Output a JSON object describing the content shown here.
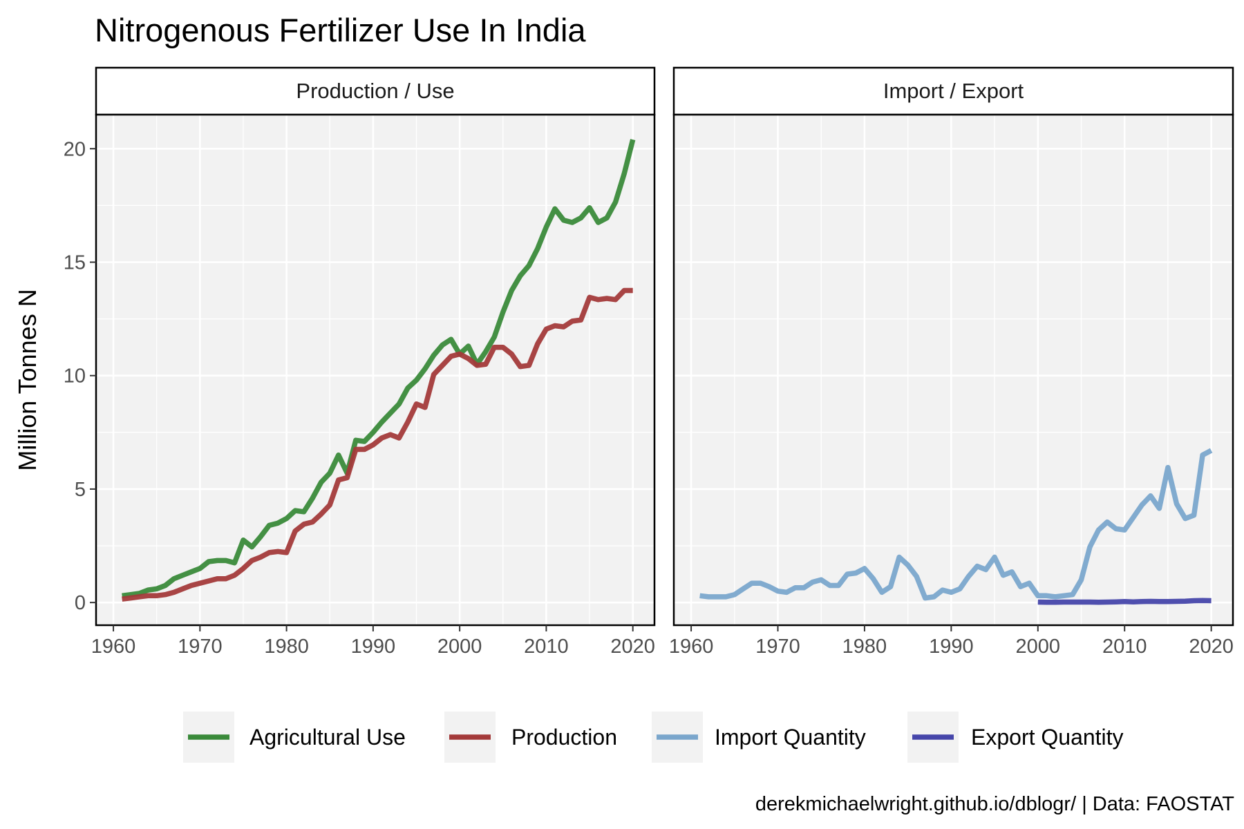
{
  "chart_data": {
    "type": "line",
    "title": "Nitrogenous Fertilizer Use In India",
    "ylabel": "Million Tonnes N",
    "caption": "derekmichaelwright.github.io/dblogr/ | Data: FAOSTAT",
    "xlim": [
      1958,
      2022.5
    ],
    "ylim": [
      -1,
      21.5
    ],
    "x_ticks": [
      1960,
      1970,
      1980,
      1990,
      2000,
      2010,
      2020
    ],
    "y_ticks": [
      0,
      5,
      10,
      15,
      20
    ],
    "grid": true,
    "legend_position": "bottom",
    "legend": [
      {
        "label": "Agricultural Use",
        "color": "#3a8a3a"
      },
      {
        "label": "Production",
        "color": "#a33a3a"
      },
      {
        "label": "Import Quantity",
        "color": "#7aa6cc"
      },
      {
        "label": "Export Quantity",
        "color": "#4646aa"
      }
    ],
    "panels": [
      {
        "strip": "Production / Use",
        "series": [
          {
            "name": "Agricultural Use",
            "color": "#3a8a3a",
            "x": [
              1961,
              1962,
              1963,
              1964,
              1965,
              1966,
              1967,
              1968,
              1969,
              1970,
              1971,
              1972,
              1973,
              1974,
              1975,
              1976,
              1977,
              1978,
              1979,
              1980,
              1981,
              1982,
              1983,
              1984,
              1985,
              1986,
              1987,
              1988,
              1989,
              1990,
              1991,
              1992,
              1993,
              1994,
              1995,
              1996,
              1997,
              1998,
              1999,
              2000,
              2001,
              2002,
              2003,
              2004,
              2005,
              2006,
              2007,
              2008,
              2009,
              2010,
              2011,
              2012,
              2013,
              2014,
              2015,
              2016,
              2017,
              2018,
              2019,
              2020
            ],
            "values": [
              0.3,
              0.35,
              0.4,
              0.55,
              0.6,
              0.75,
              1.05,
              1.2,
              1.35,
              1.5,
              1.8,
              1.85,
              1.85,
              1.75,
              2.75,
              2.45,
              2.9,
              3.4,
              3.5,
              3.7,
              4.05,
              4.0,
              4.6,
              5.3,
              5.7,
              6.5,
              5.7,
              7.15,
              7.1,
              7.5,
              7.95,
              8.35,
              8.75,
              9.45,
              9.8,
              10.3,
              10.9,
              11.35,
              11.6,
              10.95,
              11.3,
              10.5,
              11.05,
              11.7,
              12.8,
              13.75,
              14.4,
              14.85,
              15.6,
              16.55,
              17.35,
              16.85,
              16.75,
              16.95,
              17.4,
              16.75,
              16.95,
              17.65,
              18.9,
              20.4
            ]
          },
          {
            "name": "Production",
            "color": "#a33a3a",
            "x": [
              1961,
              1962,
              1963,
              1964,
              1965,
              1966,
              1967,
              1968,
              1969,
              1970,
              1971,
              1972,
              1973,
              1974,
              1975,
              1976,
              1977,
              1978,
              1979,
              1980,
              1981,
              1982,
              1983,
              1984,
              1985,
              1986,
              1987,
              1988,
              1989,
              1990,
              1991,
              1992,
              1993,
              1994,
              1995,
              1996,
              1997,
              1998,
              1999,
              2000,
              2001,
              2002,
              2003,
              2004,
              2005,
              2006,
              2007,
              2008,
              2009,
              2010,
              2011,
              2012,
              2013,
              2014,
              2015,
              2016,
              2017,
              2018,
              2019,
              2020
            ],
            "values": [
              0.15,
              0.2,
              0.25,
              0.3,
              0.3,
              0.35,
              0.45,
              0.6,
              0.75,
              0.85,
              0.95,
              1.05,
              1.05,
              1.2,
              1.5,
              1.85,
              2.0,
              2.2,
              2.25,
              2.2,
              3.15,
              3.45,
              3.55,
              3.9,
              4.3,
              5.4,
              5.5,
              6.75,
              6.75,
              6.95,
              7.25,
              7.4,
              7.25,
              7.95,
              8.75,
              8.6,
              10.05,
              10.45,
              10.85,
              10.95,
              10.75,
              10.45,
              10.5,
              11.25,
              11.25,
              10.95,
              10.4,
              10.45,
              11.4,
              12.05,
              12.2,
              12.15,
              12.4,
              12.45,
              13.45,
              13.35,
              13.4,
              13.35,
              13.75,
              13.75
            ]
          }
        ]
      },
      {
        "strip": "Import / Export",
        "series": [
          {
            "name": "Import Quantity",
            "color": "#7aa6cc",
            "x": [
              1961,
              1962,
              1963,
              1964,
              1965,
              1966,
              1967,
              1968,
              1969,
              1970,
              1971,
              1972,
              1973,
              1974,
              1975,
              1976,
              1977,
              1978,
              1979,
              1980,
              1981,
              1982,
              1983,
              1984,
              1985,
              1986,
              1987,
              1988,
              1989,
              1990,
              1991,
              1992,
              1993,
              1994,
              1995,
              1996,
              1997,
              1998,
              1999,
              2000,
              2001,
              2002,
              2003,
              2004,
              2005,
              2006,
              2007,
              2008,
              2009,
              2010,
              2011,
              2012,
              2013,
              2014,
              2015,
              2016,
              2017,
              2018,
              2019,
              2020
            ],
            "values": [
              0.3,
              0.25,
              0.25,
              0.25,
              0.35,
              0.6,
              0.85,
              0.85,
              0.7,
              0.5,
              0.45,
              0.65,
              0.65,
              0.9,
              1.0,
              0.75,
              0.75,
              1.25,
              1.3,
              1.5,
              1.05,
              0.45,
              0.7,
              2.0,
              1.65,
              1.15,
              0.2,
              0.25,
              0.55,
              0.45,
              0.6,
              1.15,
              1.6,
              1.45,
              2.0,
              1.2,
              1.35,
              0.7,
              0.85,
              0.3,
              0.3,
              0.25,
              0.3,
              0.35,
              1.0,
              2.45,
              3.2,
              3.55,
              3.25,
              3.2,
              3.75,
              4.3,
              4.7,
              4.15,
              5.95,
              4.35,
              3.7,
              3.85,
              6.5,
              6.7
            ]
          },
          {
            "name": "Export Quantity",
            "color": "#4646aa",
            "x": [
              2000,
              2001,
              2002,
              2003,
              2004,
              2005,
              2006,
              2007,
              2008,
              2009,
              2010,
              2011,
              2012,
              2013,
              2014,
              2015,
              2016,
              2017,
              2018,
              2019,
              2020
            ],
            "values": [
              0.02,
              0.01,
              0.01,
              0.02,
              0.02,
              0.02,
              0.02,
              0.01,
              0.02,
              0.03,
              0.04,
              0.03,
              0.04,
              0.05,
              0.04,
              0.04,
              0.05,
              0.06,
              0.08,
              0.09,
              0.08
            ]
          }
        ]
      }
    ]
  }
}
